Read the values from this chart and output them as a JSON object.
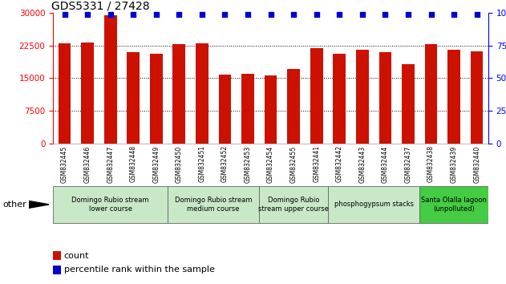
{
  "title": "GDS5331 / 27428",
  "samples": [
    "GSM832445",
    "GSM832446",
    "GSM832447",
    "GSM832448",
    "GSM832449",
    "GSM832450",
    "GSM832451",
    "GSM832452",
    "GSM832453",
    "GSM832454",
    "GSM832455",
    "GSM832441",
    "GSM832442",
    "GSM832443",
    "GSM832444",
    "GSM832437",
    "GSM832438",
    "GSM832439",
    "GSM832440"
  ],
  "counts": [
    23000,
    23200,
    29500,
    21000,
    20500,
    22800,
    23000,
    15800,
    16000,
    15600,
    17000,
    21800,
    20500,
    21500,
    21000,
    18200,
    22800,
    21500,
    21200
  ],
  "percentile_vals": [
    99,
    99,
    99,
    99,
    99,
    99,
    99,
    99,
    99,
    99,
    99,
    99,
    99,
    99,
    99,
    99,
    99,
    99,
    99
  ],
  "bar_color": "#cc1100",
  "dot_color": "#0000cc",
  "ylim_left": [
    0,
    30000
  ],
  "ylim_right": [
    0,
    100
  ],
  "yticks_left": [
    0,
    7500,
    15000,
    22500,
    30000
  ],
  "yticks_right": [
    0,
    25,
    50,
    75,
    100
  ],
  "groups": [
    {
      "label": "Domingo Rubio stream\nlower course",
      "start": 0,
      "end": 5,
      "color": "#c8e8c8"
    },
    {
      "label": "Domingo Rubio stream\nmedium course",
      "start": 5,
      "end": 9,
      "color": "#c8e8c8"
    },
    {
      "label": "Domingo Rubio\nstream upper course",
      "start": 9,
      "end": 12,
      "color": "#c8e8c8"
    },
    {
      "label": "phosphogypsum stacks",
      "start": 12,
      "end": 16,
      "color": "#c8e8c8"
    },
    {
      "label": "Santa Olalla lagoon\n(unpolluted)",
      "start": 16,
      "end": 19,
      "color": "#44cc44"
    }
  ],
  "legend_count_label": "count",
  "legend_pct_label": "percentile rank within the sample",
  "other_label": "other",
  "grid_color": "black",
  "grid_linestyle": ":",
  "grid_linewidth": 0.7,
  "bar_width": 0.55,
  "title_fontsize": 10,
  "axis_tick_fontsize": 7.5,
  "sample_label_fontsize": 5.5,
  "group_label_fontsize": 6.0,
  "legend_fontsize": 8,
  "separator_color": "#888888"
}
